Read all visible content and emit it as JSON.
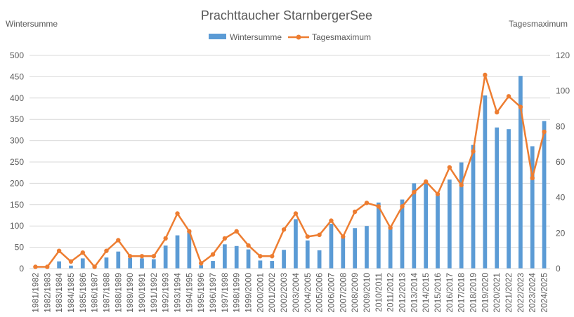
{
  "chart_data": {
    "type": "bar+line",
    "title": "Prachttaucher StarnbergerSee",
    "ylabel_left": "Wintersumme",
    "ylabel_right": "Tagesmaximum",
    "ylim_left": [
      0,
      500
    ],
    "yticks_left": [
      0,
      50,
      100,
      150,
      200,
      250,
      300,
      350,
      400,
      450,
      500
    ],
    "ylim_right": [
      0,
      120
    ],
    "yticks_right": [
      0,
      20,
      40,
      60,
      80,
      100,
      120
    ],
    "grid": true,
    "legend_position": "top",
    "categories": [
      "1981/1982",
      "1982/1983",
      "1983/1984",
      "1984/1985",
      "1985/1986",
      "1986/1987",
      "1987/1988",
      "1988/1989",
      "1989/1990",
      "1990/1991",
      "1991/1992",
      "1992/1993",
      "1993/1994",
      "1994/1995",
      "1995/1996",
      "1996/1997",
      "1997/1998",
      "1998/1999",
      "1999/2000",
      "2000/2001",
      "2001/2002",
      "2002/2003",
      "2003/2004",
      "2004/2005",
      "2005/2006",
      "2006/2007",
      "2007/2008",
      "2008/2009",
      "2009/2010",
      "2010/2011",
      "2011/2012",
      "2012/2013",
      "2013/2014",
      "2014/2015",
      "2015/2016",
      "2016/2017",
      "2017/2018",
      "2018/2019",
      "2019/2020",
      "2020/2021",
      "2021/2022",
      "2022/2023",
      "2023/2024",
      "2024/2025"
    ],
    "series": [
      {
        "name": "Wintersumme",
        "type": "bar",
        "axis": "left",
        "color": "#5b9bd5",
        "values": [
          1,
          1,
          17,
          7,
          24,
          3,
          26,
          40,
          25,
          24,
          22,
          54,
          78,
          89,
          8,
          18,
          57,
          53,
          45,
          19,
          18,
          44,
          116,
          66,
          43,
          105,
          72,
          95,
          100,
          155,
          98,
          162,
          200,
          203,
          172,
          209,
          249,
          290,
          406,
          331,
          327,
          452,
          287,
          346
        ]
      },
      {
        "name": "Tagesmaximum",
        "type": "line",
        "axis": "right",
        "color": "#ed7d31",
        "values": [
          1,
          1,
          10,
          4,
          9,
          1,
          10,
          16,
          7,
          7,
          7,
          17,
          31,
          21,
          3,
          8,
          17,
          21,
          13,
          7,
          7,
          22,
          31,
          18,
          19,
          27,
          18,
          32,
          37,
          35,
          23,
          35,
          43,
          49,
          42,
          57,
          47,
          66,
          109,
          88,
          97,
          91,
          51,
          77
        ]
      }
    ]
  }
}
